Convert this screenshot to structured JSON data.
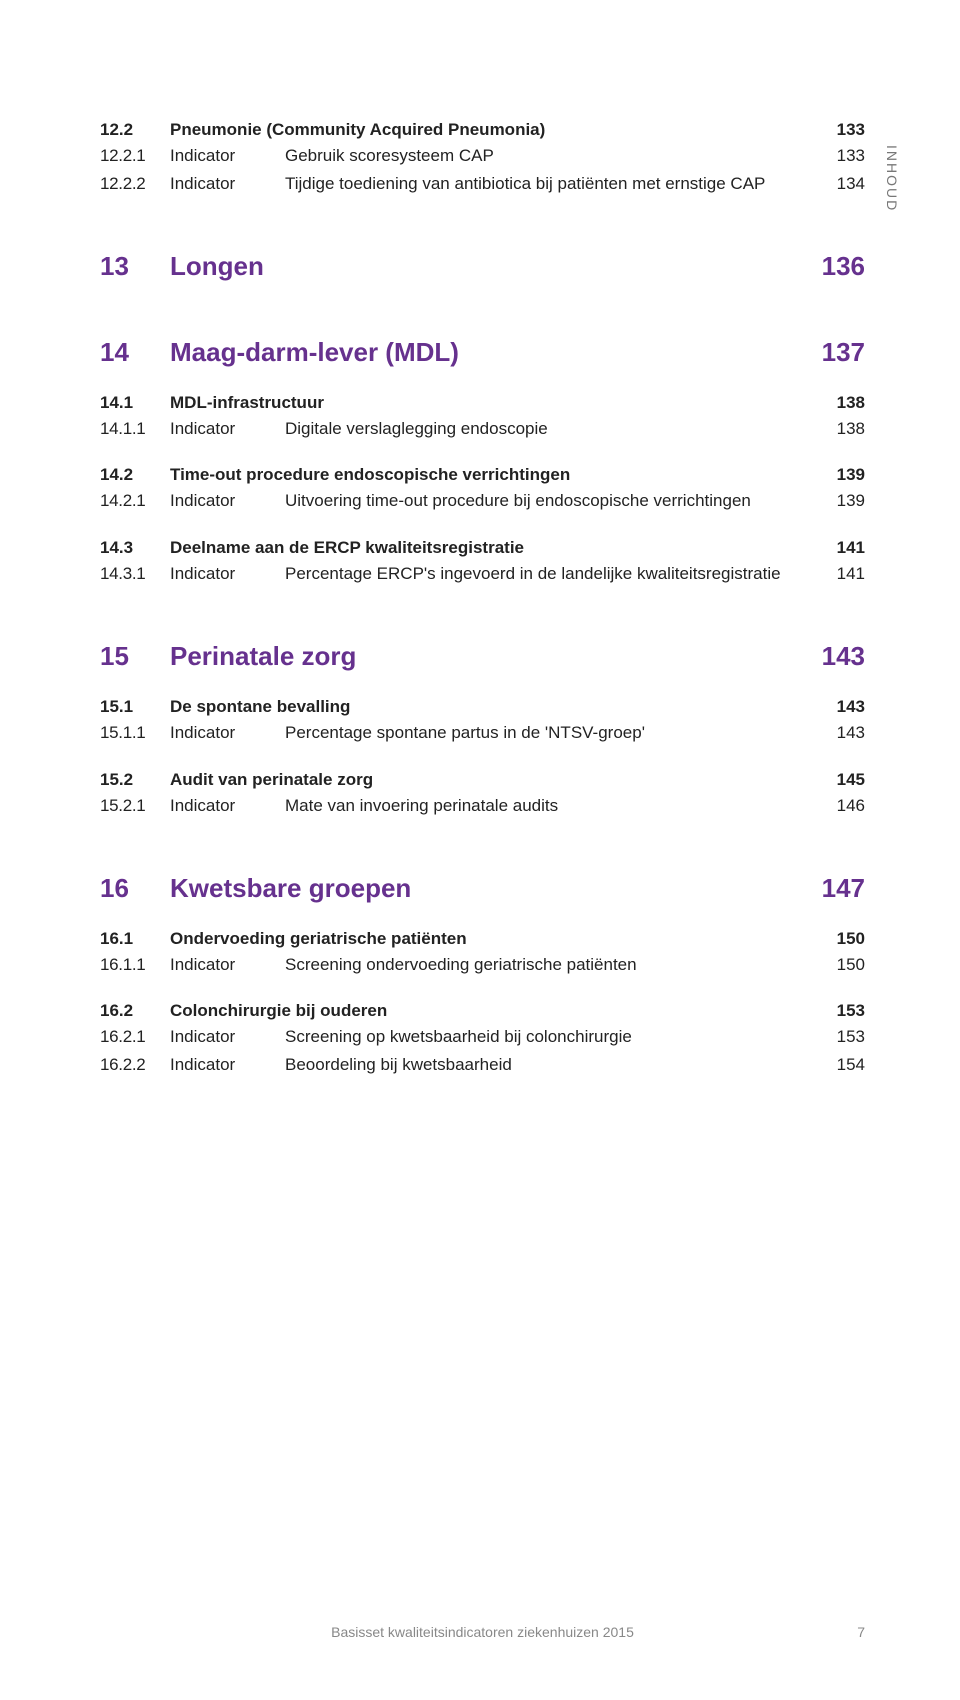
{
  "side_label": "INHOUD",
  "entries": [
    {
      "kind": "section",
      "first": true,
      "num": "12.2",
      "title": "Pneumonie (Community Acquired Pneumonia)",
      "page": "133"
    },
    {
      "kind": "indicator",
      "num": "12.2.1",
      "type": "Indicator",
      "title": "Gebruik scoresysteem CAP",
      "page": "133"
    },
    {
      "kind": "indicator",
      "num": "12.2.2",
      "type": "Indicator",
      "title": "Tijdige toediening van antibiotica bij patiënten met ernstige CAP",
      "page": "134"
    },
    {
      "kind": "chapter",
      "num": "13",
      "title": "Longen",
      "page": "136"
    },
    {
      "kind": "chapter",
      "num": "14",
      "title": "Maag-darm-lever (MDL)",
      "page": "137"
    },
    {
      "kind": "section",
      "num": "14.1",
      "title": "MDL-infrastructuur",
      "page": "138"
    },
    {
      "kind": "indicator",
      "num": "14.1.1",
      "type": "Indicator",
      "title": "Digitale verslaglegging endoscopie",
      "page": "138"
    },
    {
      "kind": "section",
      "num": "14.2",
      "title": "Time-out procedure endoscopische verrichtingen",
      "page": "139"
    },
    {
      "kind": "indicator",
      "num": "14.2.1",
      "type": "Indicator",
      "title": "Uitvoering time-out procedure bij endoscopische verrichtingen",
      "page": "139"
    },
    {
      "kind": "section",
      "num": "14.3",
      "title": "Deelname aan de ERCP kwaliteitsregistratie",
      "page": "141"
    },
    {
      "kind": "indicator",
      "num": "14.3.1",
      "type": "Indicator",
      "title": "Percentage ERCP's ingevoerd in de landelijke kwaliteits­registratie",
      "page": "141"
    },
    {
      "kind": "chapter",
      "num": "15",
      "title": "Perinatale zorg",
      "page": "143"
    },
    {
      "kind": "section",
      "num": "15.1",
      "title": "De spontane bevalling",
      "page": "143"
    },
    {
      "kind": "indicator",
      "num": "15.1.1",
      "type": "Indicator",
      "title": "Percentage spontane partus in de 'NTSV-groep'",
      "page": "143"
    },
    {
      "kind": "section",
      "num": "15.2",
      "title": "Audit van perinatale zorg",
      "page": "145"
    },
    {
      "kind": "indicator",
      "num": "15.2.1",
      "type": "Indicator",
      "title": "Mate van invoering perinatale audits",
      "page": "146"
    },
    {
      "kind": "chapter",
      "num": "16",
      "title": "Kwetsbare groepen",
      "page": "147"
    },
    {
      "kind": "section",
      "num": "16.1",
      "title": "Ondervoeding geriatrische patiënten",
      "page": "150"
    },
    {
      "kind": "indicator",
      "num": "16.1.1",
      "type": "Indicator",
      "title": "Screening ondervoeding geriatrische patiënten",
      "page": "150"
    },
    {
      "kind": "section",
      "num": "16.2",
      "title": "Colonchirurgie bij ouderen",
      "page": "153"
    },
    {
      "kind": "indicator",
      "num": "16.2.1",
      "type": "Indicator",
      "title": "Screening op kwetsbaarheid bij colonchirurgie",
      "page": "153"
    },
    {
      "kind": "indicator",
      "num": "16.2.2",
      "type": "Indicator",
      "title": "Beoordeling bij kwetsbaarheid",
      "page": "154"
    }
  ],
  "footer": {
    "text": "Basisset kwaliteitsindicatoren ziekenhuizen 2015",
    "page": "7"
  },
  "colors": {
    "chapter": "#66318e",
    "text": "#222222",
    "muted": "#888888",
    "background": "#ffffff"
  },
  "typography": {
    "chapter_fontsize": 26,
    "section_fontsize": 17,
    "indicator_fontsize": 17,
    "footer_fontsize": 14
  }
}
